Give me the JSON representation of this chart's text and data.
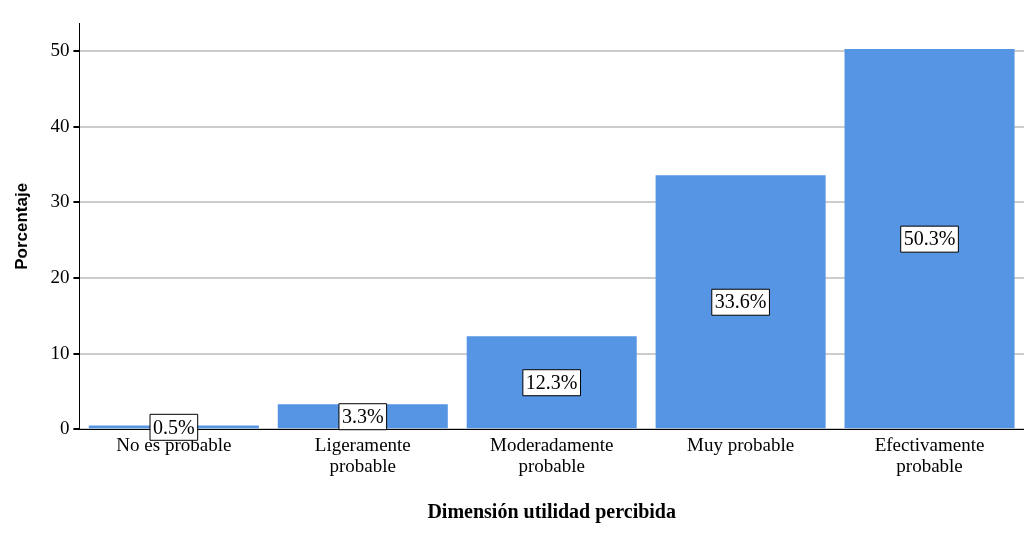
{
  "chart_data": {
    "type": "bar",
    "xlabel": "Dimensión utilidad percibida",
    "ylabel": "Porcentaje",
    "categories": [
      "No es probable",
      "Ligeramente probable",
      "Moderadamente probable",
      "Muy probable",
      "Efectivamente probable"
    ],
    "values": [
      0.5,
      3.3,
      12.3,
      33.6,
      50.3
    ],
    "value_labels": [
      "0.5%",
      "3.3%",
      "12.3%",
      "33.6%",
      "50.3%"
    ],
    "color": "#5595e3",
    "ylim": [
      0,
      53.7
    ],
    "yticks": [
      0,
      10,
      20,
      30,
      40,
      50
    ],
    "grid": "y",
    "legend": false
  }
}
